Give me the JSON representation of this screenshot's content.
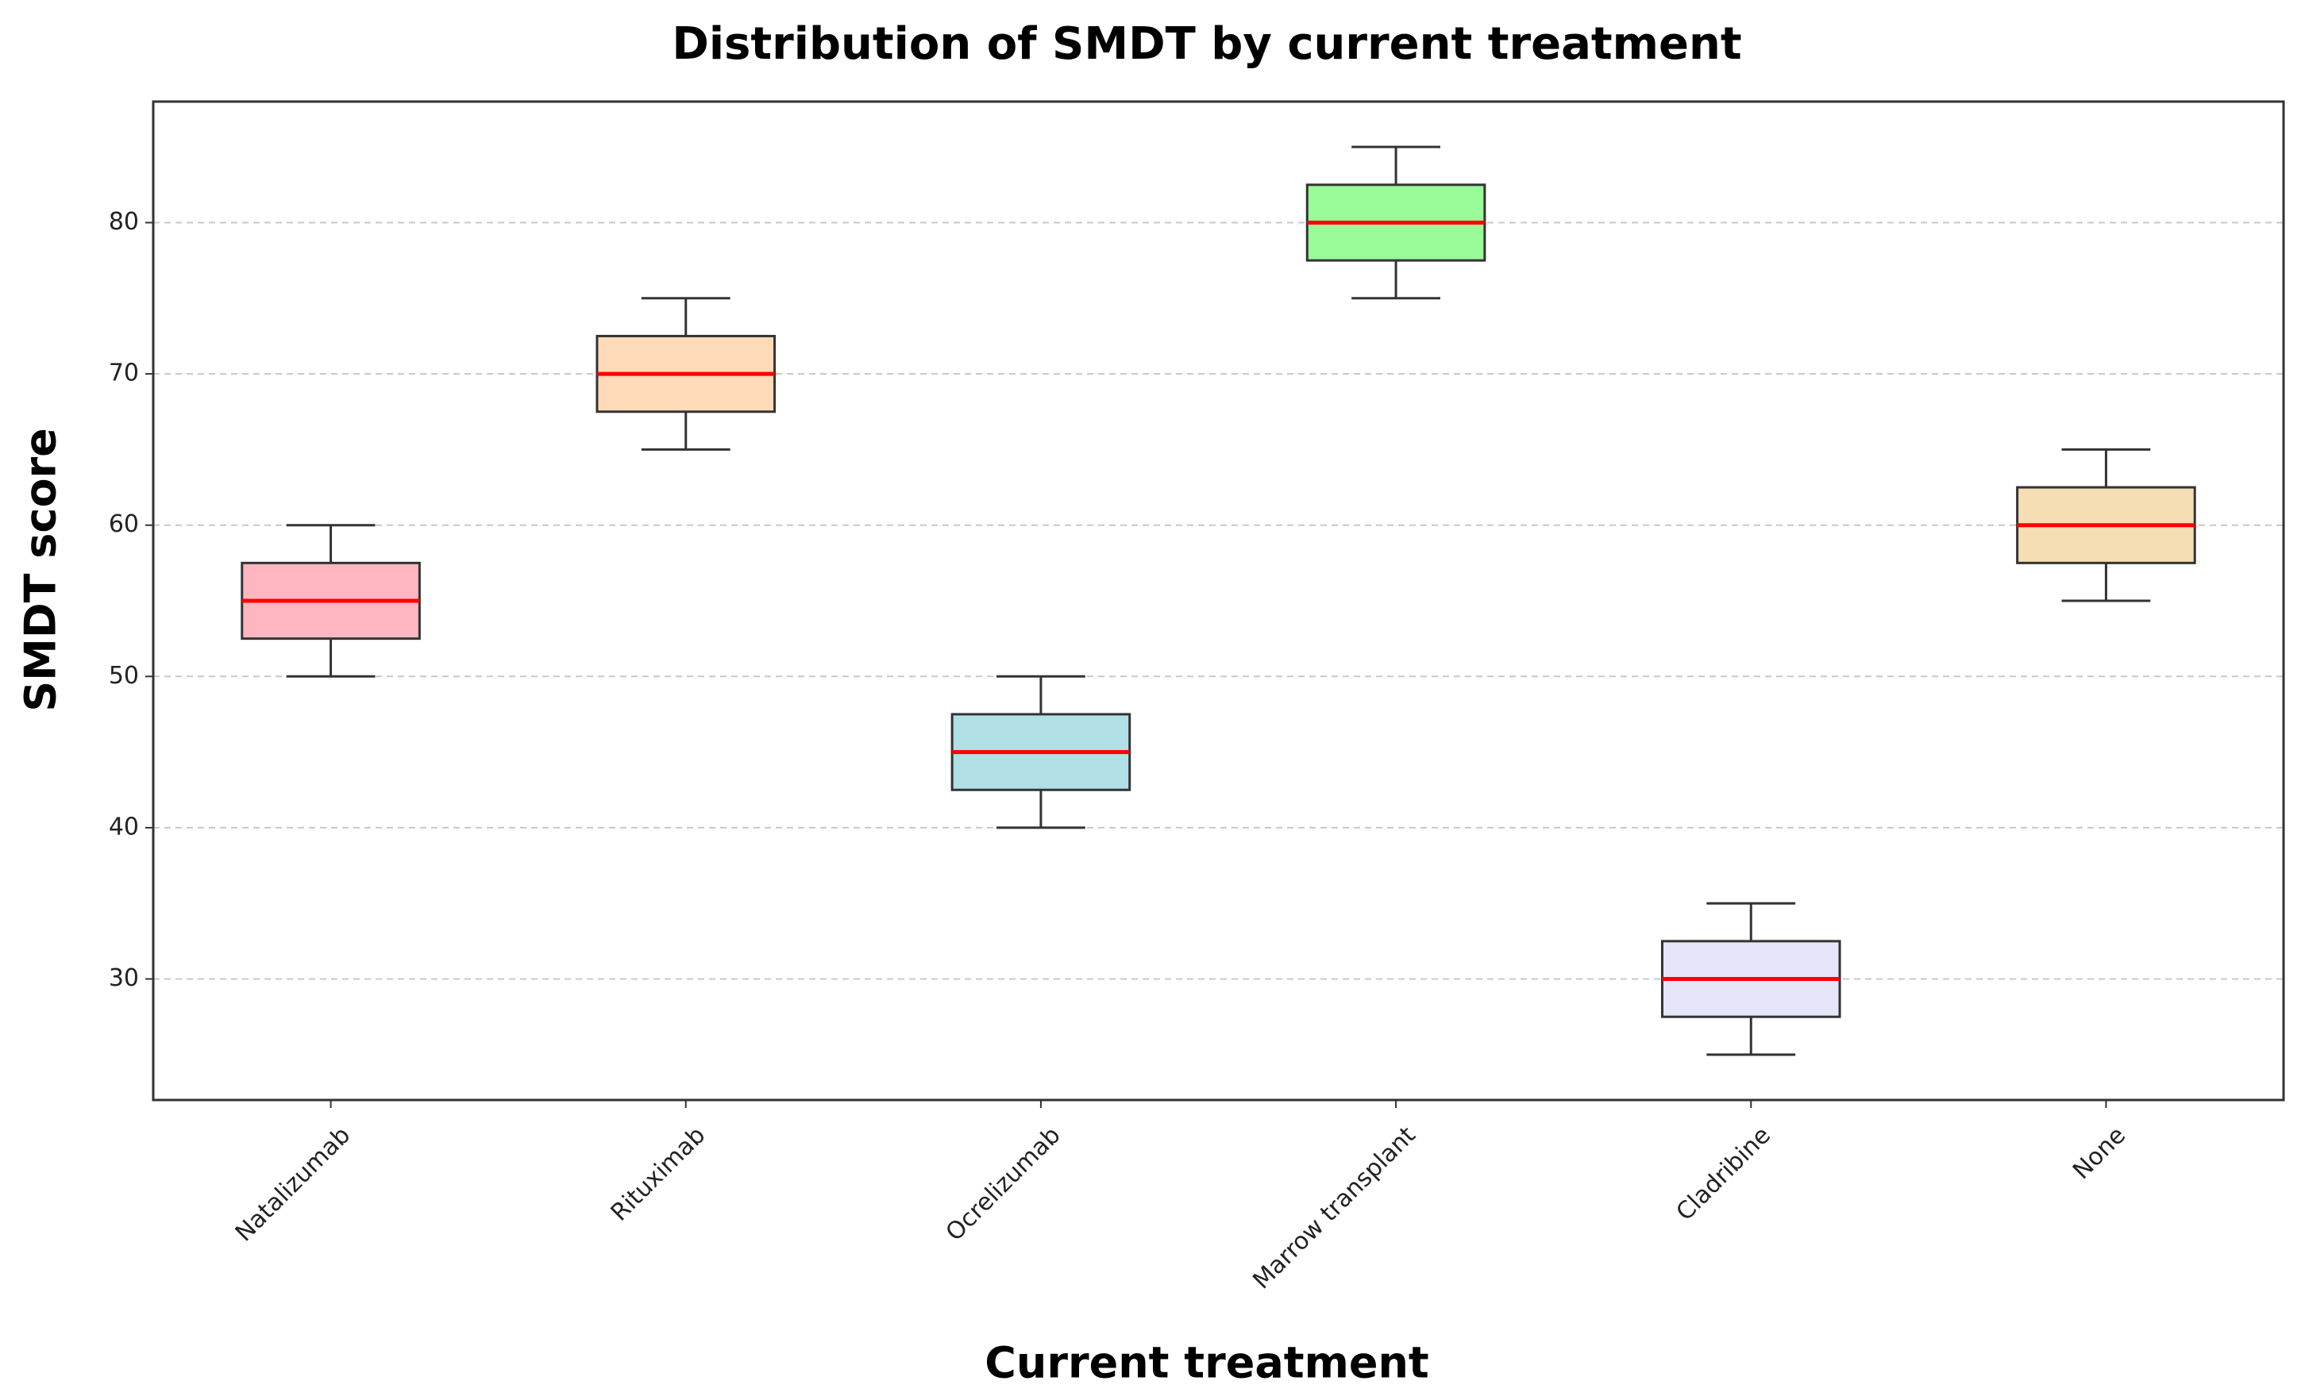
{
  "chart_data": {
    "type": "box",
    "title": "Distribution of SMDT by current treatment",
    "x_label": "Current treatment",
    "y_label": "SMDT score",
    "categories": [
      "Natalizumab",
      "Rituximab",
      "Ocrelizumab",
      "Marrow transplant",
      "Cladribine",
      "None"
    ],
    "boxes": [
      {
        "whislo": 50,
        "q1": 52.5,
        "med": 55,
        "q3": 57.5,
        "whishi": 60
      },
      {
        "whislo": 65,
        "q1": 67.5,
        "med": 70,
        "q3": 72.5,
        "whishi": 75
      },
      {
        "whislo": 40,
        "q1": 42.5,
        "med": 45,
        "q3": 47.5,
        "whishi": 50
      },
      {
        "whislo": 75,
        "q1": 77.5,
        "med": 80,
        "q3": 82.5,
        "whishi": 85
      },
      {
        "whislo": 25,
        "q1": 27.5,
        "med": 30,
        "q3": 32.5,
        "whishi": 35
      },
      {
        "whislo": 55,
        "q1": 57.5,
        "med": 60,
        "q3": 62.5,
        "whishi": 65
      }
    ],
    "colors": [
      "#ffb6c1",
      "#ffdab9",
      "#b0e0e6",
      "#98fb98",
      "#e6e6fa",
      "#f5deb3"
    ],
    "median_color": "#ff0000",
    "ylim": [
      22,
      88
    ],
    "yticks": [
      30,
      40,
      50,
      60,
      70,
      80
    ],
    "grid": true
  }
}
